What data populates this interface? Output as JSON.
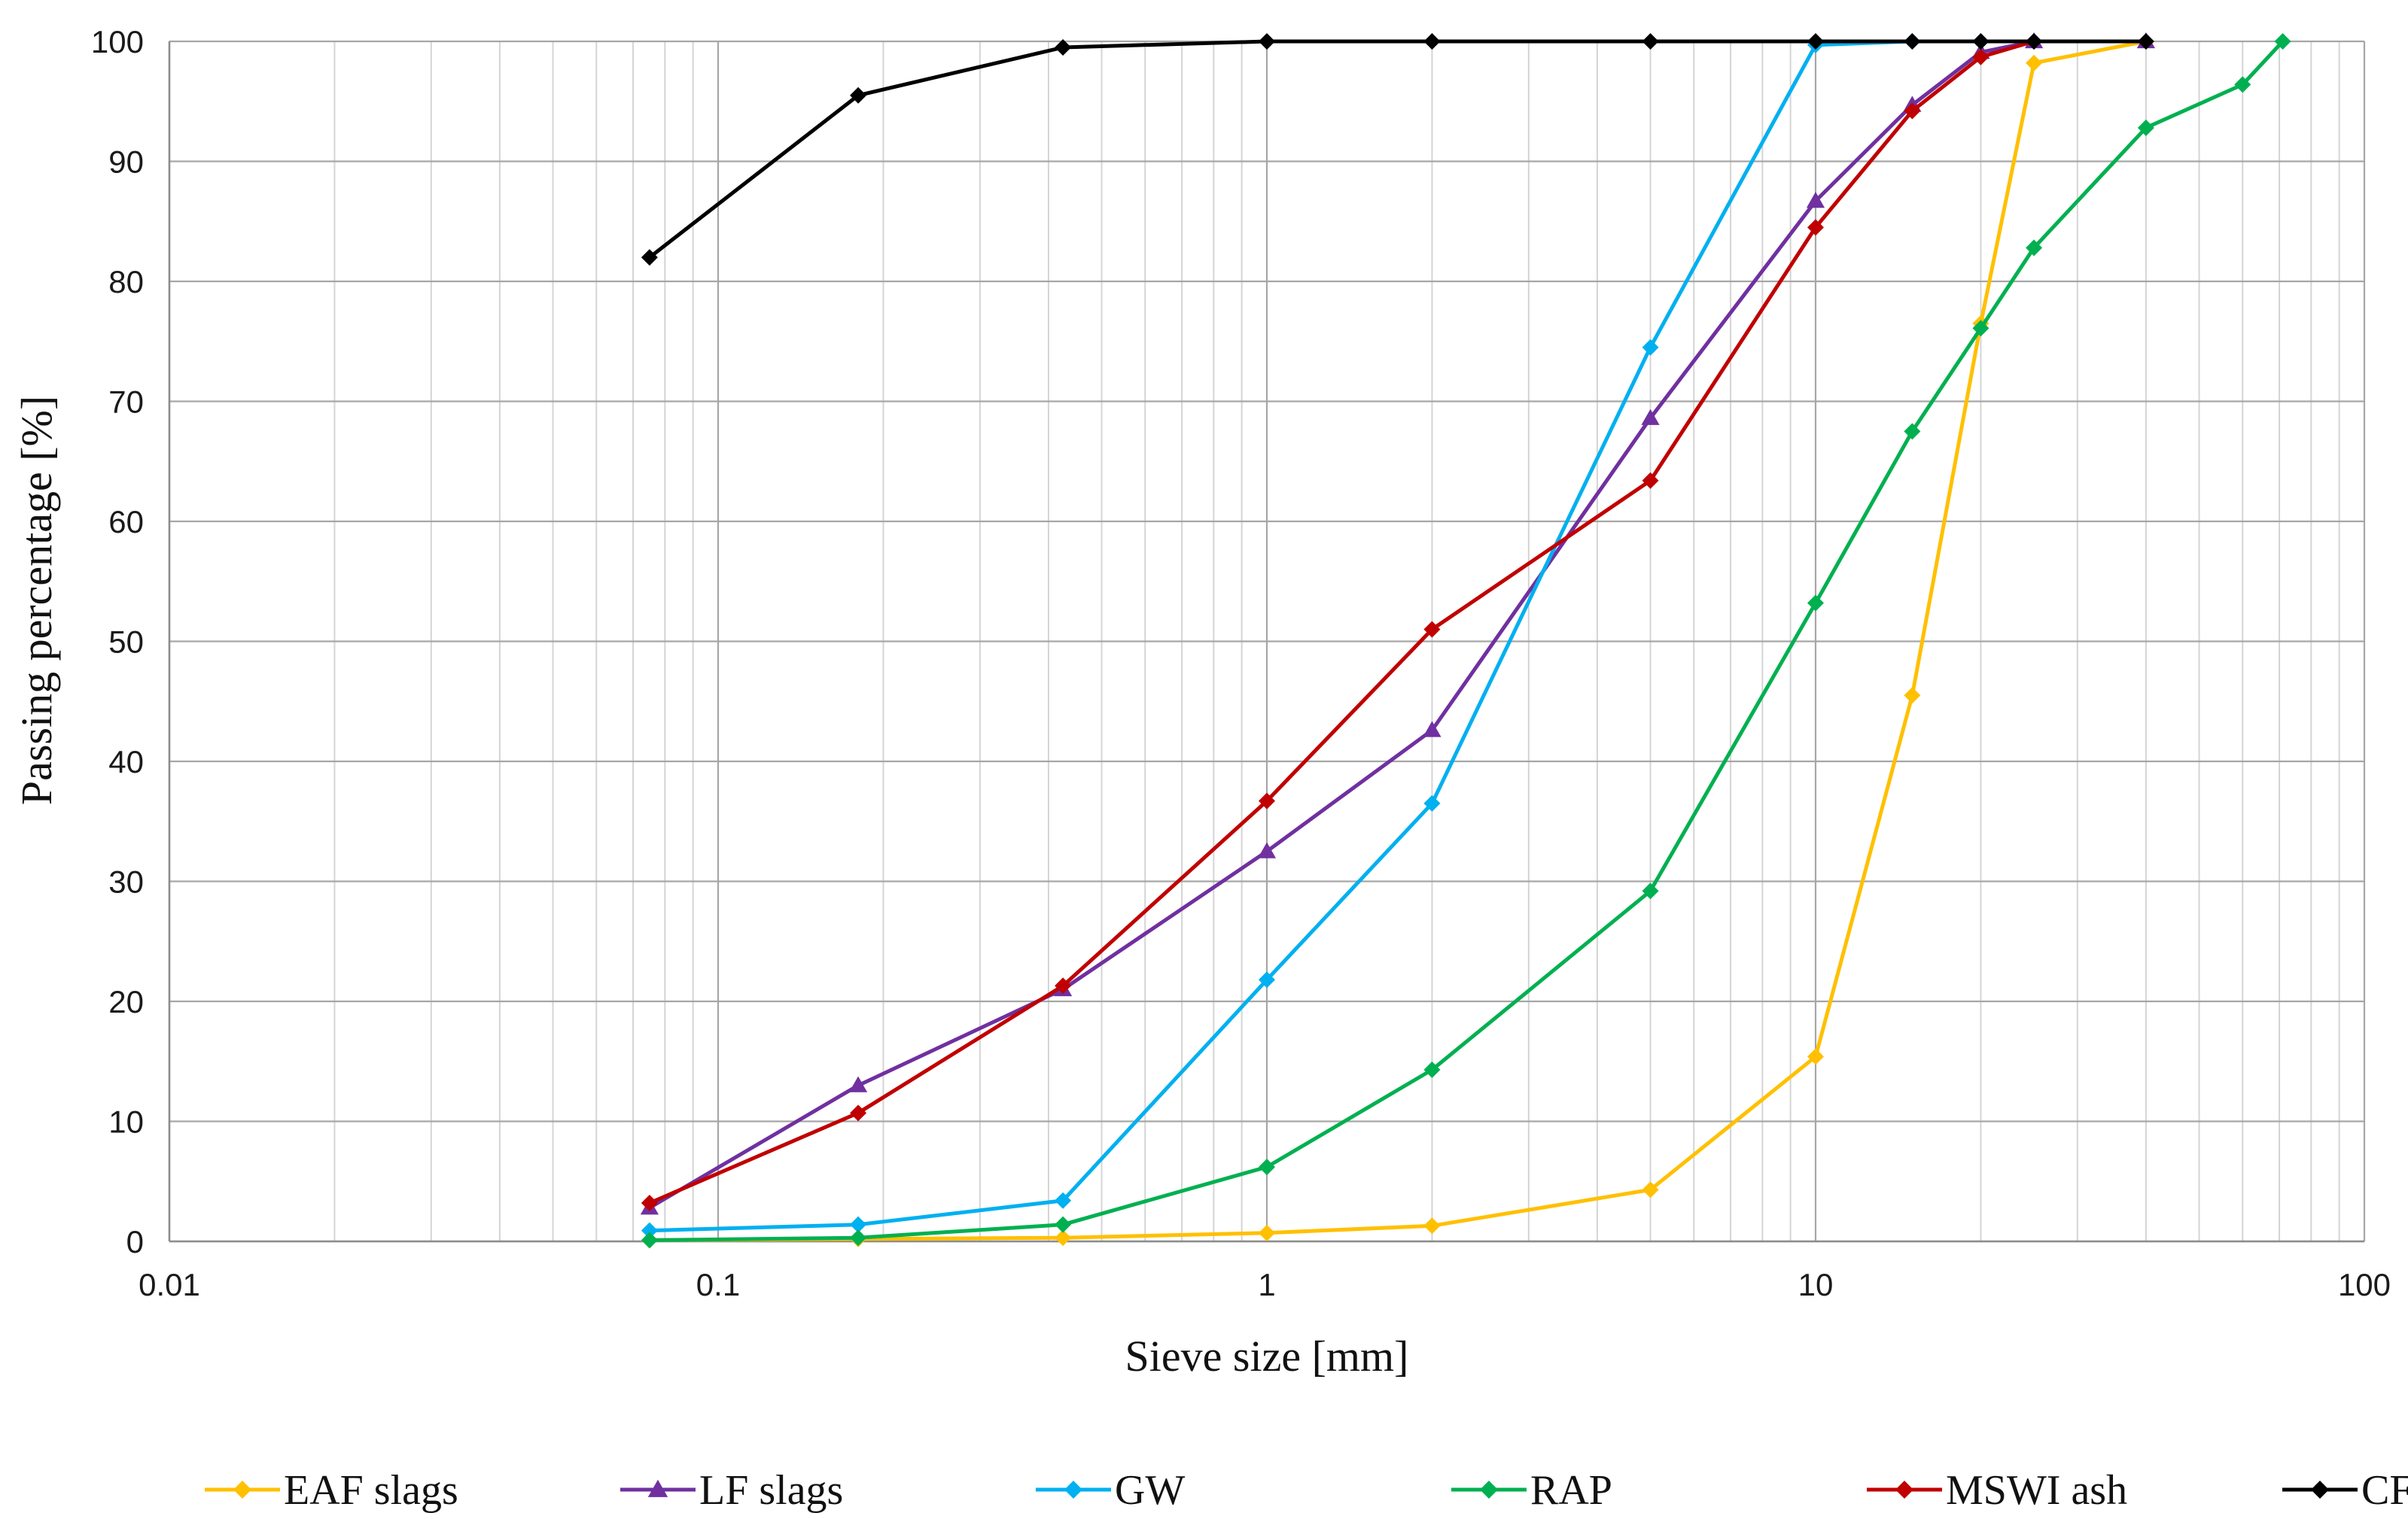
{
  "chart_data": {
    "type": "line",
    "title": "",
    "xlabel": "Sieve size [mm]",
    "ylabel": "Passing percentage [%]",
    "xscale": "log",
    "xlim": [
      0.01,
      100
    ],
    "ylim": [
      0,
      100
    ],
    "x_ticks": [
      "0.01",
      "0.1",
      "1",
      "10",
      "100"
    ],
    "y_ticks": [
      "0",
      "10",
      "20",
      "30",
      "40",
      "50",
      "60",
      "70",
      "80",
      "90",
      "100"
    ],
    "grid": true,
    "legend_position": "bottom",
    "series": [
      {
        "name": "EAF slags",
        "color": "#FFC000",
        "marker": "diamond",
        "points": [
          [
            0.075,
            0.1
          ],
          [
            0.18,
            0.2
          ],
          [
            0.425,
            0.3
          ],
          [
            1,
            0.7
          ],
          [
            2,
            1.3
          ],
          [
            5,
            4.3
          ],
          [
            10,
            15.4
          ],
          [
            15,
            45.5
          ],
          [
            20,
            76.5
          ],
          [
            25,
            98.2
          ],
          [
            40,
            100
          ]
        ]
      },
      {
        "name": "LF slags",
        "color": "#7030A0",
        "marker": "triangle",
        "points": [
          [
            0.075,
            2.8
          ],
          [
            0.18,
            13
          ],
          [
            0.425,
            21
          ],
          [
            1,
            32.5
          ],
          [
            2,
            42.6
          ],
          [
            5,
            68.6
          ],
          [
            10,
            86.7
          ],
          [
            15,
            94.7
          ],
          [
            20,
            99.1
          ],
          [
            25,
            100
          ],
          [
            40,
            100
          ]
        ]
      },
      {
        "name": "GW",
        "color": "#00B0F0",
        "marker": "diamond",
        "points": [
          [
            0.075,
            0.9
          ],
          [
            0.18,
            1.4
          ],
          [
            0.425,
            3.4
          ],
          [
            1,
            21.8
          ],
          [
            2,
            36.5
          ],
          [
            5,
            74.5
          ],
          [
            10,
            99.7
          ],
          [
            15,
            100
          ],
          [
            20,
            100
          ],
          [
            25,
            100
          ]
        ]
      },
      {
        "name": "RAP",
        "color": "#00B050",
        "marker": "diamond",
        "points": [
          [
            0.075,
            0.1
          ],
          [
            0.18,
            0.3
          ],
          [
            0.425,
            1.4
          ],
          [
            1,
            6.2
          ],
          [
            2,
            14.3
          ],
          [
            5,
            29.2
          ],
          [
            10,
            53.2
          ],
          [
            15,
            67.5
          ],
          [
            20,
            76.1
          ],
          [
            25,
            82.8
          ],
          [
            40,
            92.8
          ],
          [
            60,
            96.4
          ],
          [
            71,
            100
          ]
        ]
      },
      {
        "name": "MSWI ash",
        "color": "#C00000",
        "marker": "diamond",
        "points": [
          [
            0.075,
            3.2
          ],
          [
            0.18,
            10.7
          ],
          [
            0.425,
            21.3
          ],
          [
            1,
            36.7
          ],
          [
            2,
            51
          ],
          [
            5,
            63.4
          ],
          [
            10,
            84.5
          ],
          [
            15,
            94.2
          ],
          [
            20,
            98.7
          ],
          [
            25,
            100
          ]
        ]
      },
      {
        "name": "CF Ash",
        "color": "#000000",
        "marker": "diamond",
        "points": [
          [
            0.075,
            82
          ],
          [
            0.18,
            95.5
          ],
          [
            0.425,
            99.5
          ],
          [
            1,
            100
          ],
          [
            2,
            100
          ],
          [
            5,
            100
          ],
          [
            10,
            100
          ],
          [
            15,
            100
          ],
          [
            20,
            100
          ],
          [
            25,
            100
          ],
          [
            40,
            100
          ]
        ]
      }
    ]
  }
}
